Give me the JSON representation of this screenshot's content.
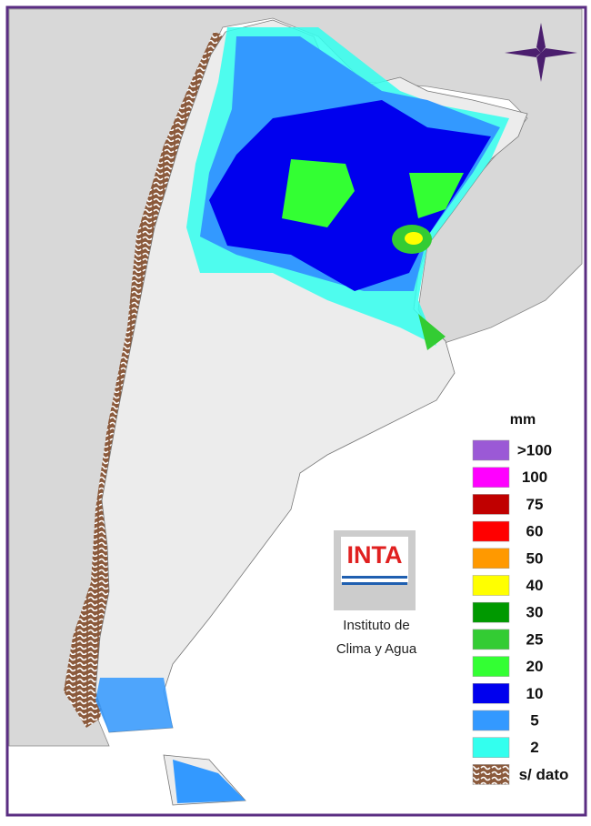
{
  "legend": {
    "unit": "mm",
    "items": [
      {
        "label": ">100",
        "color": "#9b59d6"
      },
      {
        "label": "100",
        "color": "#ff00ff"
      },
      {
        "label": "75",
        "color": "#c00000"
      },
      {
        "label": "60",
        "color": "#ff0000"
      },
      {
        "label": "50",
        "color": "#ff9900"
      },
      {
        "label": "40",
        "color": "#ffff00"
      },
      {
        "label": "30",
        "color": "#009900"
      },
      {
        "label": "25",
        "color": "#33cc33"
      },
      {
        "label": "20",
        "color": "#33ff33"
      },
      {
        "label": "10",
        "color": "#0000ee"
      },
      {
        "label": "5",
        "color": "#3399ff"
      },
      {
        "label": "2",
        "color": "#33ffee"
      },
      {
        "label": "s/ dato",
        "color": "#8b5a3c"
      }
    ]
  },
  "logo": {
    "text": "INTA",
    "caption": [
      "Instituto de",
      "Clima y Agua"
    ]
  }
}
